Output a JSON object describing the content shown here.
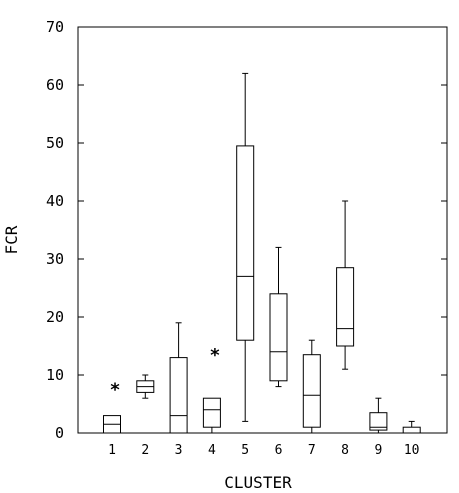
{
  "chart_data": {
    "type": "box",
    "xlabel": "CLUSTER",
    "ylabel": "FCR",
    "ylim": [
      0,
      70
    ],
    "yticks": [
      0,
      10,
      20,
      30,
      40,
      50,
      60,
      70
    ],
    "categories": [
      "1",
      "2",
      "3",
      "4",
      "5",
      "6",
      "7",
      "8",
      "9",
      "10"
    ],
    "boxes": [
      {
        "category": "1",
        "min": 0,
        "q1": 0,
        "median": 1.5,
        "q3": 3,
        "max": 3,
        "outliers": [
          8
        ]
      },
      {
        "category": "2",
        "min": 6,
        "q1": 7,
        "median": 8,
        "q3": 9,
        "max": 10,
        "outliers": []
      },
      {
        "category": "3",
        "min": 0,
        "q1": 0,
        "median": 3,
        "q3": 13,
        "max": 19,
        "outliers": []
      },
      {
        "category": "4",
        "min": 0,
        "q1": 1,
        "median": 4,
        "q3": 6,
        "max": 6,
        "outliers": [
          14
        ]
      },
      {
        "category": "5",
        "min": 2,
        "q1": 16,
        "median": 27,
        "q3": 49.5,
        "max": 62,
        "outliers": []
      },
      {
        "category": "6",
        "min": 8,
        "q1": 9,
        "median": 14,
        "q3": 24,
        "max": 32,
        "outliers": []
      },
      {
        "category": "7",
        "min": 0,
        "q1": 1,
        "median": 6.5,
        "q3": 13.5,
        "max": 16,
        "outliers": []
      },
      {
        "category": "8",
        "min": 11,
        "q1": 15,
        "median": 18,
        "q3": 28.5,
        "max": 40,
        "outliers": []
      },
      {
        "category": "9",
        "min": 0,
        "q1": 0.5,
        "median": 1,
        "q3": 3.5,
        "max": 6,
        "outliers": []
      },
      {
        "category": "10",
        "min": 0,
        "q1": 0,
        "median": 0,
        "q3": 1,
        "max": 2,
        "outliers": []
      }
    ],
    "outlier_marker": "*",
    "grid": false,
    "legend": "none"
  }
}
